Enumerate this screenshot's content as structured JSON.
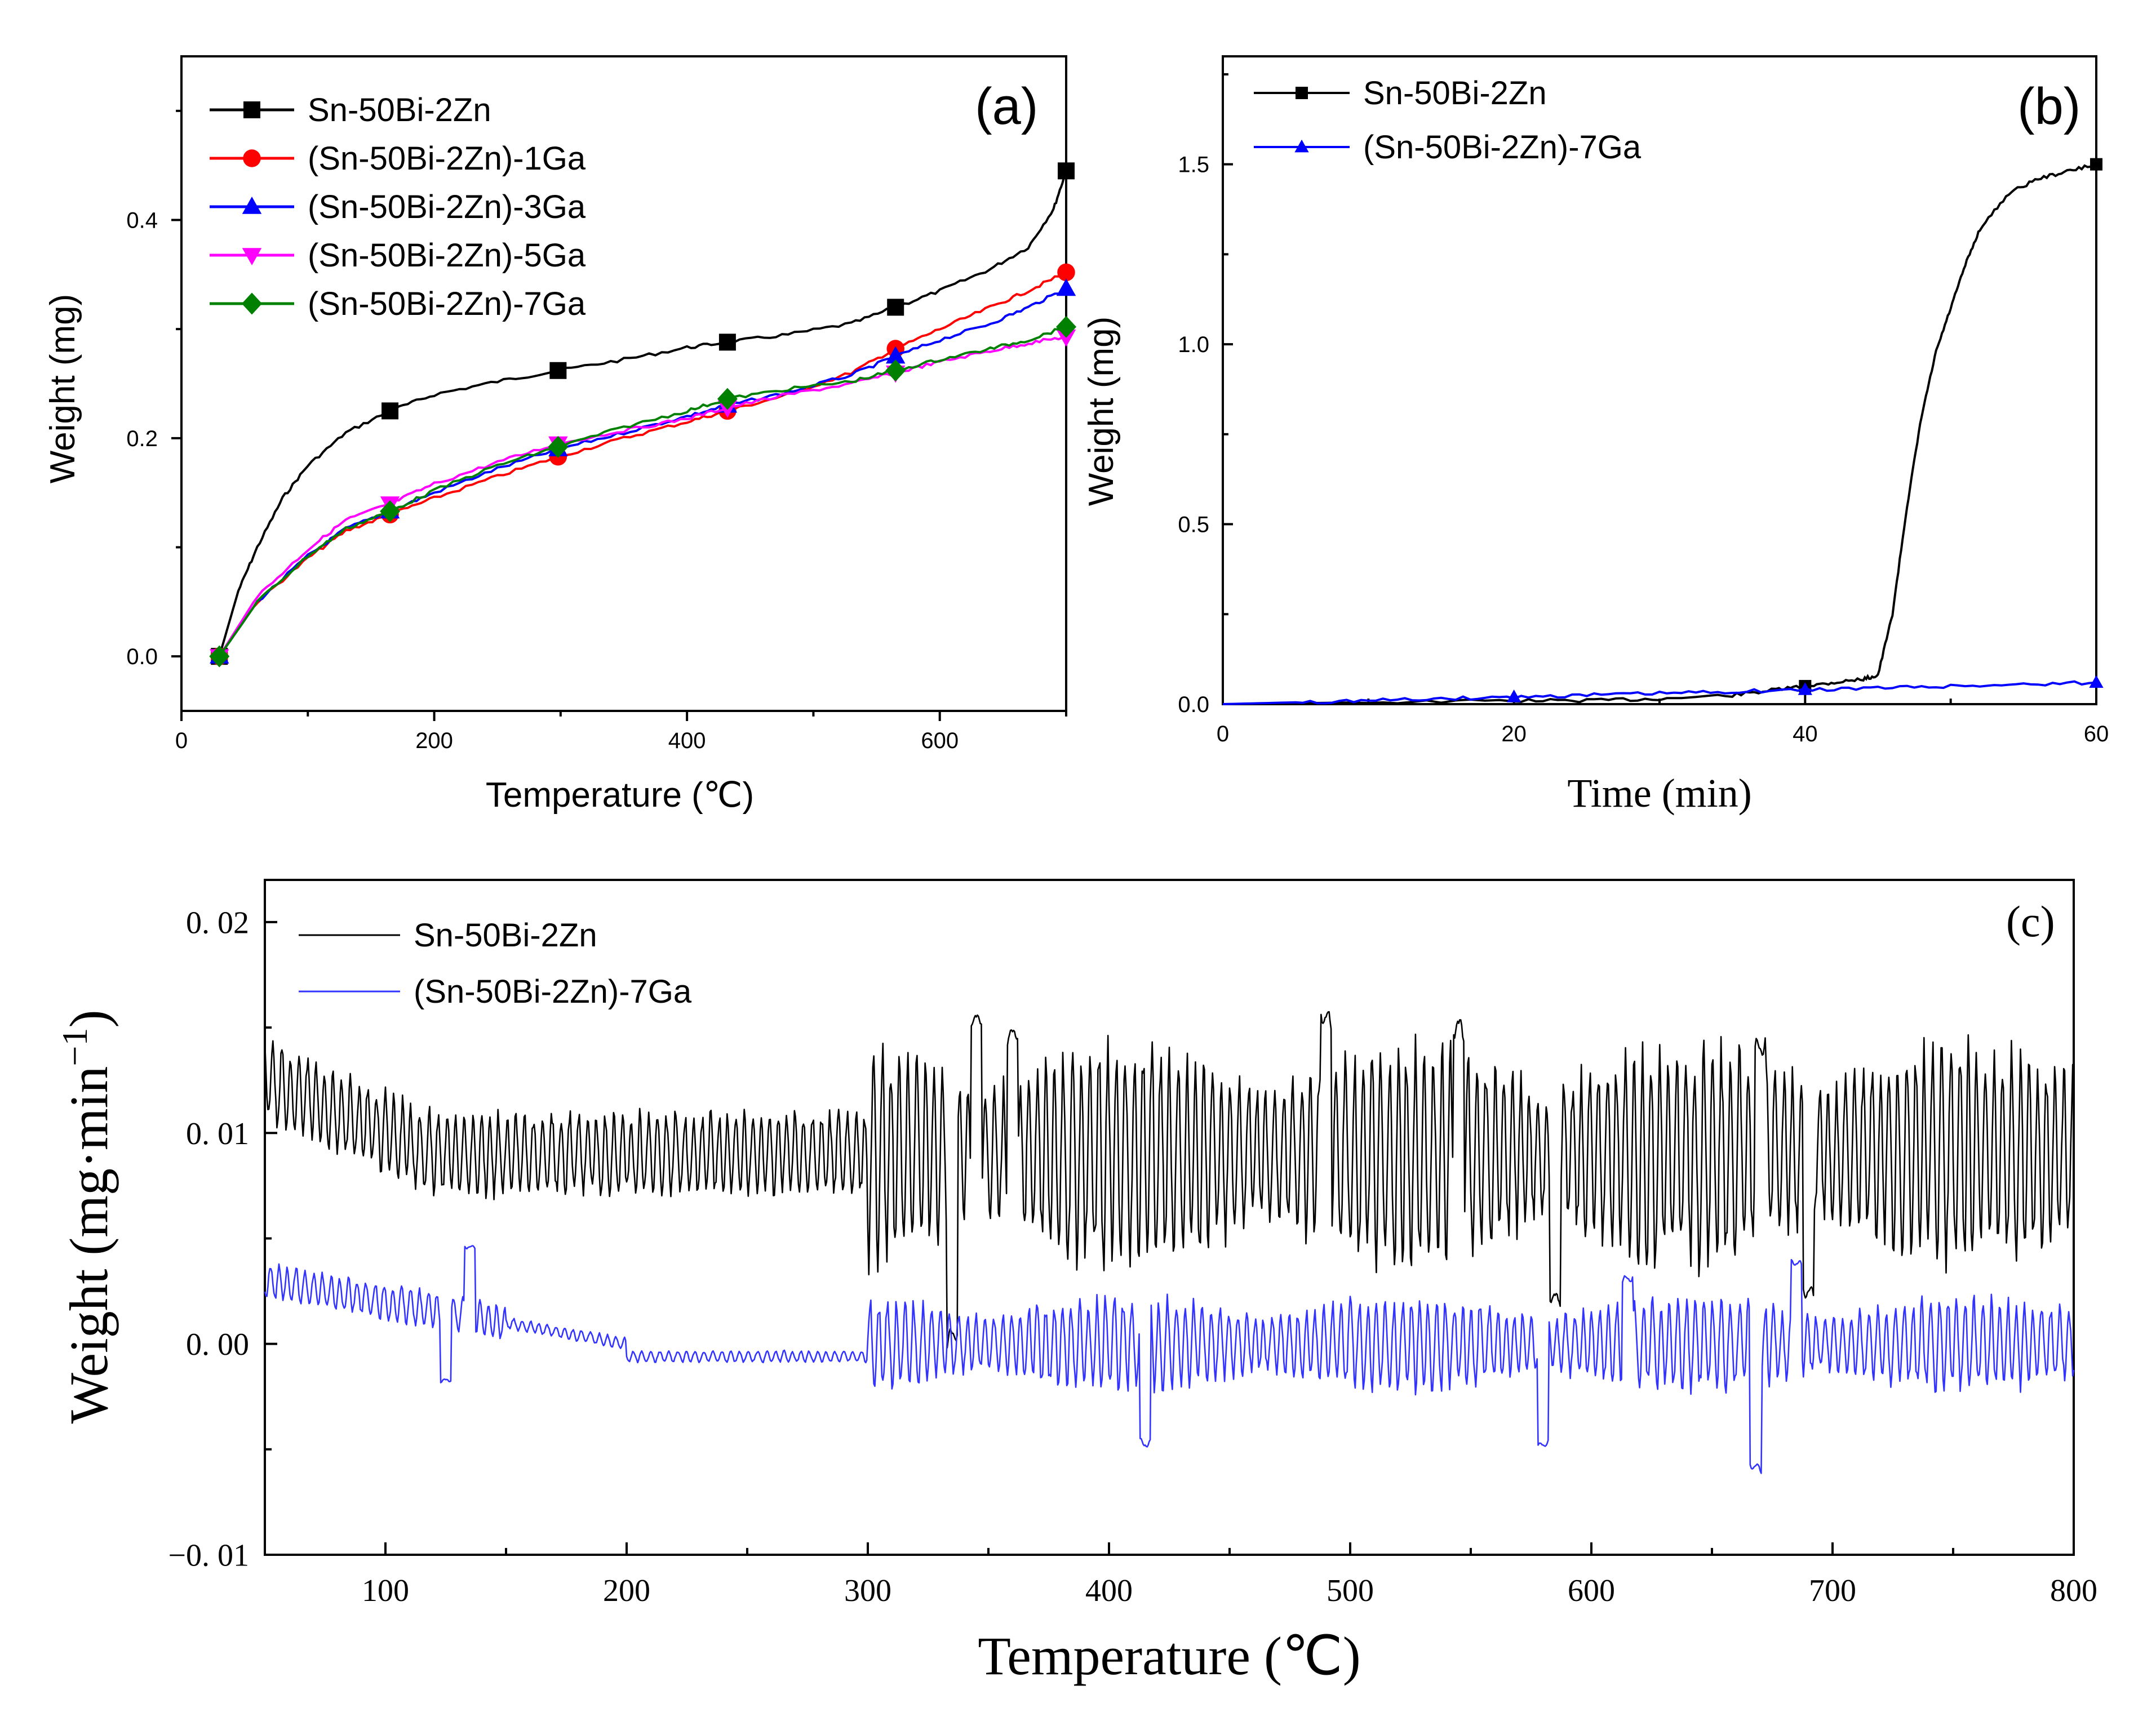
{
  "chart_data": [
    {
      "id": "a",
      "type": "line",
      "panel_label": "(a)",
      "xlabel": "Temperature (℃)",
      "ylabel": "Weight (mg)",
      "xlim": [
        0,
        700
      ],
      "ylim": [
        -0.05,
        0.55
      ],
      "xticks": [
        0,
        200,
        400,
        600
      ],
      "xtick_labels": [
        "0",
        "200",
        "400",
        "600"
      ],
      "yticks": [
        0.0,
        0.2,
        0.4
      ],
      "ytick_labels": [
        "0.0",
        "0.2",
        "0.4"
      ],
      "legend_position": "top-left",
      "series": [
        {
          "name": "Sn-50Bi-2Zn",
          "color": "#000000",
          "marker": "square",
          "x": [
            30,
            45,
            60,
            80,
            100,
            130,
            165,
            200,
            250,
            298,
            350,
            400,
            432,
            480,
            530,
            565,
            600,
            640,
            670,
            690,
            700
          ],
          "y": [
            0.0,
            0.06,
            0.1,
            0.145,
            0.175,
            0.205,
            0.225,
            0.24,
            0.252,
            0.262,
            0.272,
            0.283,
            0.288,
            0.295,
            0.305,
            0.32,
            0.335,
            0.355,
            0.375,
            0.41,
            0.445
          ],
          "marker_x": [
            30,
            165,
            298,
            432,
            565,
            700
          ],
          "marker_y": [
            0.0,
            0.225,
            0.262,
            0.288,
            0.32,
            0.445
          ]
        },
        {
          "name": "(Sn-50Bi-2Zn)-1Ga",
          "color": "#ff0000",
          "marker": "circle",
          "x": [
            30,
            60,
            100,
            130,
            165,
            200,
            250,
            298,
            350,
            400,
            432,
            480,
            530,
            565,
            600,
            640,
            670,
            700
          ],
          "y": [
            0.0,
            0.05,
            0.09,
            0.115,
            0.13,
            0.145,
            0.165,
            0.183,
            0.2,
            0.215,
            0.225,
            0.24,
            0.26,
            0.282,
            0.3,
            0.32,
            0.335,
            0.352
          ],
          "marker_x": [
            30,
            165,
            298,
            432,
            565,
            700
          ],
          "marker_y": [
            0.0,
            0.13,
            0.183,
            0.225,
            0.282,
            0.352
          ]
        },
        {
          "name": "(Sn-50Bi-2Zn)-3Ga",
          "color": "#0000ff",
          "marker": "triangle-up",
          "x": [
            30,
            60,
            100,
            130,
            165,
            200,
            250,
            298,
            350,
            400,
            432,
            480,
            530,
            565,
            600,
            640,
            670,
            700
          ],
          "y": [
            0.0,
            0.05,
            0.092,
            0.117,
            0.133,
            0.15,
            0.172,
            0.19,
            0.205,
            0.22,
            0.23,
            0.242,
            0.258,
            0.275,
            0.29,
            0.305,
            0.32,
            0.337
          ],
          "marker_x": [
            30,
            165,
            298,
            432,
            565,
            700
          ],
          "marker_y": [
            0.0,
            0.133,
            0.19,
            0.23,
            0.275,
            0.337
          ]
        },
        {
          "name": "(Sn-50Bi-2Zn)-5Ga",
          "color": "#ff00ff",
          "marker": "triangle-down",
          "x": [
            30,
            60,
            100,
            130,
            165,
            200,
            250,
            298,
            350,
            400,
            432,
            480,
            530,
            565,
            600,
            640,
            670,
            700
          ],
          "y": [
            0.0,
            0.055,
            0.098,
            0.125,
            0.14,
            0.158,
            0.178,
            0.195,
            0.207,
            0.218,
            0.228,
            0.24,
            0.25,
            0.26,
            0.27,
            0.28,
            0.287,
            0.293
          ],
          "marker_x": [
            30,
            165,
            298,
            432,
            565,
            700
          ],
          "marker_y": [
            0.0,
            0.14,
            0.195,
            0.228,
            0.26,
            0.293
          ]
        },
        {
          "name": "(Sn-50Bi-2Zn)-7Ga",
          "color": "#008000",
          "marker": "diamond",
          "x": [
            30,
            60,
            100,
            130,
            165,
            200,
            250,
            298,
            350,
            400,
            432,
            480,
            530,
            565,
            600,
            640,
            670,
            700
          ],
          "y": [
            0.0,
            0.05,
            0.092,
            0.117,
            0.133,
            0.152,
            0.175,
            0.192,
            0.21,
            0.225,
            0.236,
            0.245,
            0.252,
            0.262,
            0.272,
            0.282,
            0.29,
            0.302
          ],
          "marker_x": [
            30,
            165,
            298,
            432,
            565,
            700
          ],
          "marker_y": [
            0.0,
            0.133,
            0.192,
            0.236,
            0.262,
            0.302
          ]
        }
      ]
    },
    {
      "id": "b",
      "type": "line",
      "panel_label": "(b)",
      "xlabel": "Time (min)",
      "ylabel": "Weight (mg)",
      "xlim": [
        0,
        60
      ],
      "ylim": [
        0,
        1.8
      ],
      "xticks": [
        0,
        20,
        40,
        60
      ],
      "xtick_labels": [
        "0",
        "20",
        "40",
        "60"
      ],
      "yticks": [
        0.0,
        0.5,
        1.0,
        1.5
      ],
      "ytick_labels": [
        "0.0",
        "0.5",
        "1.0",
        "1.5"
      ],
      "legend_position": "top-left",
      "series": [
        {
          "name": "Sn-50Bi-2Zn",
          "color": "#000000",
          "marker": "square",
          "x": [
            0,
            10,
            20,
            25,
            30,
            35,
            38,
            40,
            42,
            44,
            45,
            46,
            47,
            48,
            49,
            50,
            51,
            52,
            54,
            56,
            58,
            60
          ],
          "y": [
            0.0,
            0.005,
            0.01,
            0.01,
            0.015,
            0.025,
            0.04,
            0.05,
            0.06,
            0.07,
            0.08,
            0.25,
            0.55,
            0.8,
            0.98,
            1.1,
            1.22,
            1.32,
            1.42,
            1.46,
            1.48,
            1.5
          ],
          "marker_x": [
            40,
            60
          ],
          "marker_y": [
            0.05,
            1.5
          ]
        },
        {
          "name": "(Sn-50Bi-2Zn)-7Ga",
          "color": "#0000ff",
          "marker": "triangle-up",
          "x": [
            0,
            5,
            10,
            15,
            20,
            25,
            30,
            35,
            40,
            45,
            50,
            55,
            60
          ],
          "y": [
            0.0,
            0.005,
            0.01,
            0.015,
            0.02,
            0.025,
            0.03,
            0.035,
            0.04,
            0.045,
            0.05,
            0.055,
            0.06
          ],
          "marker_x": [
            20,
            40,
            60
          ],
          "marker_y": [
            0.02,
            0.04,
            0.06
          ]
        }
      ]
    },
    {
      "id": "c",
      "type": "line",
      "panel_label": "(c)",
      "xlabel": "Temperature (℃)",
      "ylabel": "Weight (mg·min⁻¹)",
      "ylabel_prefix": "Weight (mg·min",
      "ylabel_exponent": "−1",
      "ylabel_suffix": ")",
      "xlim": [
        50,
        800
      ],
      "ylim": [
        -0.01,
        0.022
      ],
      "xticks": [
        100,
        200,
        300,
        400,
        500,
        600,
        700,
        800
      ],
      "xtick_labels": [
        "100",
        "200",
        "300",
        "400",
        "500",
        "600",
        "700",
        "800"
      ],
      "yticks": [
        -0.01,
        0.0,
        0.01,
        0.02
      ],
      "ytick_labels": [
        "−0. 01",
        "0. 00",
        "0. 01",
        "0. 02"
      ],
      "legend_position": "top-left",
      "series": [
        {
          "name": "Sn-50Bi-2Zn",
          "color": "#000000",
          "baseline": 0.009,
          "amplitude_low": 0.002,
          "amplitude_high": 0.006,
          "x_range": [
            50,
            800
          ],
          "peaks_x": [
            345,
            490,
            545,
            360,
            335,
            585,
            670,
            690
          ],
          "peaks_y": [
            0.0155,
            0.0155,
            0.0152,
            0.0148,
            0.0005,
            0.0023,
            0.014,
            0.0025
          ]
        },
        {
          "name": "(Sn-50Bi-2Zn)-7Ga",
          "color": "#3333ff",
          "baseline": 0.0,
          "amplitude_low": 0.0006,
          "amplitude_high": 0.0025,
          "x_range": [
            50,
            800
          ],
          "peaks_x": [
            135,
            125,
            415,
            580,
            615,
            668,
            685
          ],
          "peaks_y": [
            0.0046,
            -0.0017,
            -0.0048,
            -0.0048,
            0.0031,
            -0.0058,
            0.0038
          ]
        }
      ]
    }
  ]
}
